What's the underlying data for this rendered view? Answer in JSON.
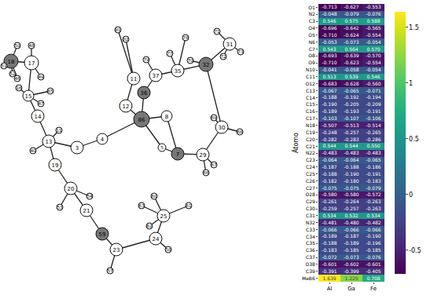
{
  "diagram": {
    "nodes": [
      "86",
      "4",
      "3",
      "13",
      "11",
      "40",
      "19",
      "20",
      "54",
      "53",
      "21",
      "59",
      "23",
      "57",
      "24",
      "58",
      "25",
      "61",
      "60",
      "63",
      "62",
      "5",
      "7",
      "29",
      "66",
      "67",
      "8",
      "30",
      "69",
      "68",
      "32",
      "31",
      "71",
      "73",
      "70",
      "72",
      "35",
      "78",
      "77",
      "79",
      "37",
      "36",
      "12",
      "11",
      "81",
      "82",
      "14",
      "15",
      "16",
      "65",
      "47",
      "17",
      "18",
      "50",
      "48",
      "49",
      "51",
      "46",
      "52"
    ],
    "bonds": [
      [
        0,
        1
      ],
      [
        1,
        2
      ],
      [
        2,
        3
      ],
      [
        3,
        4
      ],
      [
        3,
        5
      ],
      [
        3,
        6
      ],
      [
        6,
        7
      ],
      [
        7,
        8
      ],
      [
        7,
        9
      ],
      [
        7,
        10
      ],
      [
        10,
        11
      ],
      [
        11,
        12
      ],
      [
        12,
        13
      ],
      [
        12,
        14
      ],
      [
        14,
        15
      ],
      [
        14,
        16
      ],
      [
        16,
        17
      ],
      [
        16,
        18
      ],
      [
        16,
        19
      ],
      [
        16,
        20
      ],
      [
        0,
        21
      ],
      [
        21,
        22
      ],
      [
        22,
        23
      ],
      [
        23,
        24
      ],
      [
        23,
        25
      ],
      [
        22,
        26
      ],
      [
        26,
        0
      ],
      [
        23,
        27
      ],
      [
        27,
        28
      ],
      [
        27,
        29
      ],
      [
        27,
        30
      ],
      [
        30,
        31
      ],
      [
        31,
        32
      ],
      [
        31,
        33
      ],
      [
        30,
        34
      ],
      [
        31,
        35
      ],
      [
        30,
        36
      ],
      [
        36,
        37
      ],
      [
        36,
        38
      ],
      [
        36,
        40
      ],
      [
        40,
        39
      ],
      [
        40,
        41
      ],
      [
        41,
        0
      ],
      [
        0,
        42
      ],
      [
        42,
        43
      ],
      [
        43,
        44
      ],
      [
        43,
        45
      ],
      [
        3,
        46
      ],
      [
        46,
        47
      ],
      [
        47,
        48
      ],
      [
        47,
        49
      ],
      [
        47,
        50
      ],
      [
        47,
        51
      ],
      [
        51,
        52
      ],
      [
        52,
        53
      ],
      [
        51,
        54
      ],
      [
        51,
        55
      ],
      [
        52,
        56
      ],
      [
        52,
        57
      ],
      [
        52,
        58
      ]
    ]
  },
  "chart_data": {
    "type": "heatmap",
    "x": [
      "Al",
      "Ga",
      "Fe"
    ],
    "y": [
      "O1",
      "N2",
      "C3",
      "O4",
      "O5",
      "N6",
      "C7",
      "O8",
      "O9",
      "N10",
      "C11",
      "O12",
      "C13",
      "C14",
      "C15",
      "C16",
      "C17",
      "N18",
      "C19",
      "C20",
      "C21",
      "N22",
      "C23",
      "C24",
      "C25",
      "C26",
      "C27",
      "O28",
      "C29",
      "C30",
      "C31",
      "N32",
      "C33",
      "C34",
      "C35",
      "C36",
      "C37",
      "O38",
      "C39",
      "MeB6"
    ],
    "ylabel": "Átomo",
    "cells": [
      [
        -0.713,
        -0.627,
        -0.553
      ],
      [
        -0.048,
        -0.079,
        -0.076
      ],
      [
        0.546,
        0.575,
        0.588
      ],
      [
        -0.696,
        -0.642,
        -0.565
      ],
      [
        -0.71,
        -0.624,
        -0.554
      ],
      [
        -0.053,
        -0.073,
        -0.054
      ],
      [
        0.543,
        0.564,
        0.57
      ],
      [
        -0.693,
        -0.639,
        -0.57
      ],
      [
        -0.71,
        -0.623,
        -0.554
      ],
      [
        -0.041,
        -0.058,
        -0.054
      ],
      [
        0.513,
        0.539,
        0.546
      ],
      [
        -0.683,
        -0.628,
        -0.56
      ],
      [
        -0.067,
        -0.065,
        -0.071
      ],
      [
        -0.188,
        -0.192,
        -0.194
      ],
      [
        -0.19,
        -0.205,
        -0.209
      ],
      [
        -0.189,
        -0.193,
        -0.191
      ],
      [
        -0.103,
        -0.107,
        -0.106
      ],
      [
        -0.507,
        -0.513,
        -0.514
      ],
      [
        -0.248,
        -0.257,
        -0.265
      ],
      [
        -0.282,
        -0.283,
        -0.286
      ],
      [
        0.544,
        0.544,
        0.55
      ],
      [
        -0.483,
        -0.483,
        -0.483
      ],
      [
        -0.064,
        -0.064,
        -0.065
      ],
      [
        -0.187,
        -0.188,
        -0.186
      ],
      [
        -0.188,
        -0.19,
        -0.191
      ],
      [
        -0.182,
        -0.18,
        -0.183
      ],
      [
        -0.075,
        -0.075,
        -0.079
      ],
      [
        -0.58,
        -0.58,
        -0.572
      ],
      [
        -0.261,
        -0.264,
        -0.263
      ],
      [
        -0.259,
        -0.257,
        -0.263
      ],
      [
        0.534,
        0.532,
        0.534
      ],
      [
        -0.481,
        -0.48,
        -0.482
      ],
      [
        -0.066,
        -0.066,
        -0.066
      ],
      [
        -0.189,
        -0.187,
        -0.19
      ],
      [
        -0.188,
        -0.189,
        -0.196
      ],
      [
        -0.183,
        -0.185,
        -0.185
      ],
      [
        -0.072,
        -0.073,
        -0.076
      ],
      [
        -0.601,
        -0.602,
        -0.601
      ],
      [
        -0.391,
        -0.399,
        -0.405
      ],
      [
        1.639,
        1.225,
        0.708
      ]
    ],
    "cell_labels": [
      [
        "-0.713",
        "-0.627",
        "-0.553"
      ],
      [
        "-0.048",
        "-0.079",
        "-0.076"
      ],
      [
        "0.546",
        "0.575",
        "0.588"
      ],
      [
        "-0.696",
        "-0.642",
        "-0.565"
      ],
      [
        "-0.710",
        "-0.624",
        "-0.554"
      ],
      [
        "-0.053",
        "-0.073",
        "-0.054"
      ],
      [
        "0.543",
        "0.564",
        "0.570"
      ],
      [
        "-0.693",
        "-0.639",
        "-0.570"
      ],
      [
        "-0.710",
        "-0.623",
        "-0.554"
      ],
      [
        "-0.041",
        "-0.058",
        "-0.054"
      ],
      [
        "0.513",
        "0.539",
        "0.546"
      ],
      [
        "-0.683",
        "-0.628",
        "-0.560"
      ],
      [
        "-0.067",
        "-0.065",
        "-0.071"
      ],
      [
        "-0.188",
        "-0.192",
        "-0.194"
      ],
      [
        "-0.190",
        "-0.205",
        "-0.209"
      ],
      [
        "-0.189",
        "-0.193",
        "-0.191"
      ],
      [
        "-0.103",
        "-0.107",
        "-0.106"
      ],
      [
        "-0.507",
        "-0.513",
        "-0.514"
      ],
      [
        "-0.248",
        "-0.257",
        "-0.265"
      ],
      [
        "-0.282",
        "-0.283",
        "-0.286"
      ],
      [
        "0.544",
        "0.544",
        "0.550"
      ],
      [
        "-0.483",
        "-0.483",
        "-0.483"
      ],
      [
        "-0.064",
        "-0.064",
        "-0.065"
      ],
      [
        "-0.187",
        "-0.188",
        "-0.186"
      ],
      [
        "-0.188",
        "-0.190",
        "-0.191"
      ],
      [
        "-0.182",
        "-0.180",
        "-0.183"
      ],
      [
        "-0.075",
        "-0.075",
        "-0.079"
      ],
      [
        "-0.580",
        "-0.580",
        "-0.572"
      ],
      [
        "-0.261",
        "-0.264",
        "-0.263"
      ],
      [
        "-0.259",
        "-0.257",
        "-0.263"
      ],
      [
        "0.534",
        "0.532",
        "0.534"
      ],
      [
        "-0.481",
        "-0.480",
        "-0.482"
      ],
      [
        "-0.066",
        "-0.066",
        "-0.066"
      ],
      [
        "-0.189",
        "-0.187",
        "-0.190"
      ],
      [
        "-0.188",
        "-0.189",
        "-0.196"
      ],
      [
        "-0.183",
        "-0.185",
        "-0.185"
      ],
      [
        "-0.072",
        "-0.073",
        "-0.076"
      ],
      [
        "-0.601",
        "-0.602",
        "-0.601"
      ],
      [
        "-0.391",
        "-0.399",
        "-0.405"
      ],
      [
        "1.639",
        "1.225",
        "0.708"
      ]
    ],
    "colorbar_range": [
      -0.713,
      1.639
    ],
    "colorbar_ticks": [
      -0.5,
      0,
      0.5,
      1,
      1.5
    ]
  }
}
